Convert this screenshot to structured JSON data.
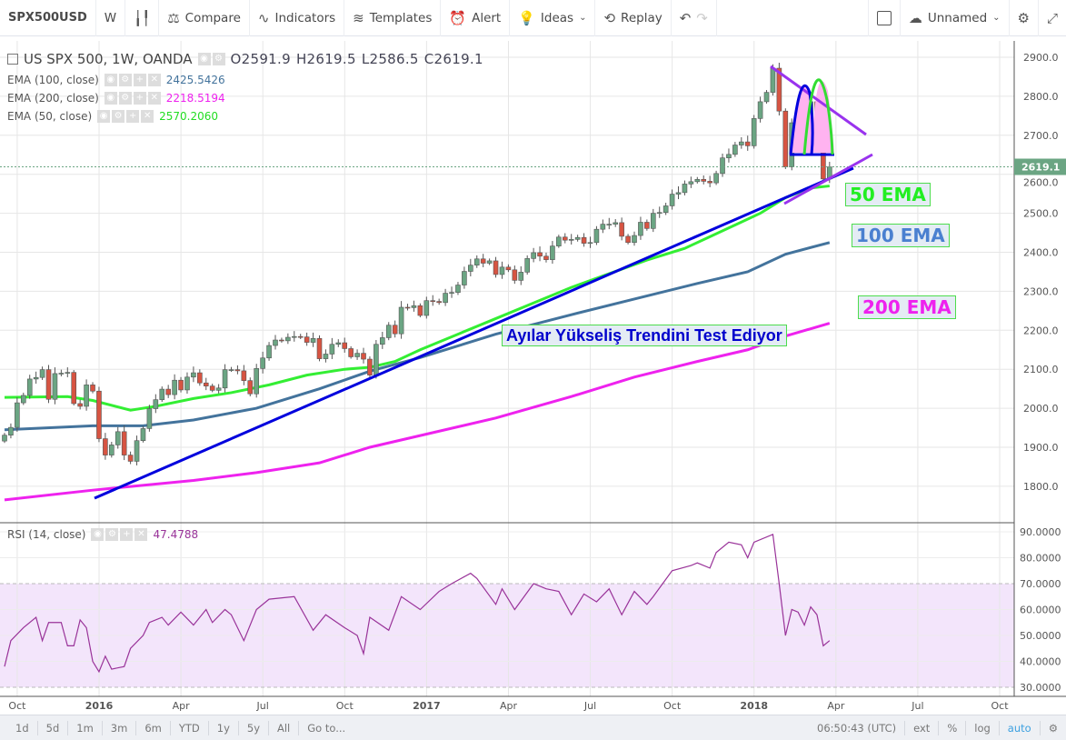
{
  "toolbar": {
    "symbol": "SPX500USD",
    "interval": "W",
    "compare": "Compare",
    "indicators": "Indicators",
    "templates": "Templates",
    "alert": "Alert",
    "ideas": "Ideas",
    "replay": "Replay",
    "layout_name": "Unnamed"
  },
  "legend": {
    "title": "US SPX 500, 1W, OANDA",
    "open": "O2591.9",
    "high": "H2619.5",
    "low": "L2586.5",
    "close": "C2619.1",
    "ema100_label": "EMA (100, close)",
    "ema100_value": "2425.5426",
    "ema200_label": "EMA (200, close)",
    "ema200_value": "2218.5194",
    "ema50_label": "EMA (50, close)",
    "ema50_value": "2570.2060",
    "rsi_label": "RSI (14, close)",
    "rsi_value": "47.4788"
  },
  "annotations": {
    "ema50": "50 EMA",
    "ema100": "100 EMA",
    "ema200": "200 EMA",
    "trend": "Ayılar Yükseliş Trendini Test Ediyor"
  },
  "bottom": {
    "ranges": [
      "1d",
      "5d",
      "1m",
      "3m",
      "6m",
      "YTD",
      "1y",
      "5y",
      "All",
      "Go to..."
    ],
    "time": "06:50:43 (UTC)",
    "ext": "ext",
    "pct": "%",
    "log": "log",
    "auto": "auto"
  },
  "colors": {
    "up": "#6ba583",
    "down": "#d75442",
    "ema50": "#33ee33",
    "ema100": "#43739c",
    "ema200": "#ee22ee",
    "rsi": "#993399",
    "trend": "#0000dd"
  },
  "chart_data": {
    "type": "candlestick",
    "price_axis": {
      "ticks": [
        2900,
        2800,
        2700,
        2600,
        2500,
        2400,
        2300,
        2200,
        2100,
        2000,
        1900,
        1800
      ],
      "labels": [
        "2900.0",
        "2800.0",
        "2700.0",
        "2600.0",
        "2500.0",
        "2400.0",
        "2300.0",
        "2200.0",
        "2100.0",
        "2000.0",
        "1900.0",
        "1800.0"
      ],
      "last": "2619.1"
    },
    "time_axis": {
      "labels": [
        "Oct",
        "2016",
        "Apr",
        "Jul",
        "Oct",
        "2017",
        "Apr",
        "Jul",
        "Oct",
        "2018",
        "Apr",
        "Jul",
        "Oct"
      ],
      "week_index": [
        1,
        14,
        27,
        40,
        53,
        66,
        79,
        92,
        105,
        118,
        131,
        144,
        157
      ]
    },
    "weekly_closes": [
      1931,
      1951,
      2014,
      2033,
      2075,
      2079,
      2099,
      2023,
      2089,
      2090,
      2092,
      2012,
      2005,
      2060,
      2044,
      1922,
      1880,
      1906,
      1940,
      1880,
      1864,
      1917,
      1948,
      1999,
      2022,
      2049,
      2035,
      2072,
      2047,
      2080,
      2091,
      2065,
      2057,
      2046,
      2052,
      2099,
      2099,
      2096,
      2071,
      2037,
      2102,
      2129,
      2161,
      2175,
      2173,
      2182,
      2184,
      2183,
      2169,
      2179,
      2127,
      2139,
      2164,
      2168,
      2153,
      2132,
      2141,
      2126,
      2085,
      2164,
      2181,
      2213,
      2191,
      2259,
      2258,
      2263,
      2238,
      2276,
      2274,
      2271,
      2295,
      2297,
      2316,
      2351,
      2367,
      2383,
      2372,
      2378,
      2343,
      2362,
      2355,
      2328,
      2349,
      2384,
      2399,
      2390,
      2381,
      2416,
      2439,
      2431,
      2433,
      2438,
      2423,
      2425,
      2459,
      2472,
      2472,
      2476,
      2441,
      2425,
      2443,
      2477,
      2461,
      2500,
      2502,
      2519,
      2549,
      2553,
      2575,
      2581,
      2587,
      2582,
      2578,
      2602,
      2642,
      2651,
      2675,
      2683,
      2673,
      2743,
      2786,
      2810,
      2872,
      2762,
      2619,
      2732,
      2747,
      2691,
      2786,
      2752,
      2588,
      2619
    ],
    "ema50": [
      [
        0,
        2028
      ],
      [
        10,
        2030
      ],
      [
        14,
        2020
      ],
      [
        20,
        1995
      ],
      [
        24,
        2005
      ],
      [
        30,
        2025
      ],
      [
        36,
        2040
      ],
      [
        42,
        2060
      ],
      [
        48,
        2085
      ],
      [
        54,
        2100
      ],
      [
        58,
        2105
      ],
      [
        62,
        2120
      ],
      [
        66,
        2150
      ],
      [
        72,
        2190
      ],
      [
        78,
        2230
      ],
      [
        84,
        2270
      ],
      [
        90,
        2310
      ],
      [
        96,
        2345
      ],
      [
        102,
        2380
      ],
      [
        108,
        2410
      ],
      [
        112,
        2440
      ],
      [
        116,
        2470
      ],
      [
        120,
        2500
      ],
      [
        124,
        2540
      ],
      [
        128,
        2565
      ],
      [
        131,
        2570
      ]
    ],
    "ema100": [
      [
        0,
        1945
      ],
      [
        14,
        1955
      ],
      [
        22,
        1955
      ],
      [
        30,
        1970
      ],
      [
        40,
        2000
      ],
      [
        50,
        2050
      ],
      [
        58,
        2095
      ],
      [
        66,
        2130
      ],
      [
        78,
        2190
      ],
      [
        90,
        2240
      ],
      [
        100,
        2280
      ],
      [
        110,
        2320
      ],
      [
        118,
        2350
      ],
      [
        124,
        2395
      ],
      [
        131,
        2425
      ]
    ],
    "ema200": [
      [
        0,
        1765
      ],
      [
        14,
        1790
      ],
      [
        30,
        1815
      ],
      [
        40,
        1835
      ],
      [
        50,
        1860
      ],
      [
        58,
        1900
      ],
      [
        66,
        1930
      ],
      [
        78,
        1975
      ],
      [
        90,
        2030
      ],
      [
        100,
        2080
      ],
      [
        110,
        2120
      ],
      [
        118,
        2150
      ],
      [
        124,
        2185
      ],
      [
        131,
        2218
      ]
    ],
    "rsi_axis": {
      "ticks": [
        90,
        80,
        70,
        60,
        50,
        40,
        30
      ],
      "labels": [
        "90.0000",
        "80.0000",
        "70.0000",
        "60.0000",
        "50.0000",
        "40.0000",
        "30.0000"
      ],
      "band": [
        30,
        70
      ]
    },
    "rsi": [
      [
        0,
        38
      ],
      [
        1,
        48
      ],
      [
        3,
        53
      ],
      [
        5,
        57
      ],
      [
        6,
        48
      ],
      [
        7,
        55
      ],
      [
        9,
        55
      ],
      [
        10,
        46
      ],
      [
        11,
        46
      ],
      [
        12,
        56
      ],
      [
        13,
        53
      ],
      [
        14,
        40
      ],
      [
        15,
        36
      ],
      [
        16,
        42
      ],
      [
        17,
        37
      ],
      [
        19,
        38
      ],
      [
        20,
        45
      ],
      [
        22,
        50
      ],
      [
        23,
        55
      ],
      [
        25,
        57
      ],
      [
        26,
        54
      ],
      [
        28,
        59
      ],
      [
        30,
        54
      ],
      [
        32,
        60
      ],
      [
        33,
        55
      ],
      [
        35,
        60
      ],
      [
        36,
        58
      ],
      [
        38,
        48
      ],
      [
        40,
        60
      ],
      [
        42,
        64
      ],
      [
        46,
        65
      ],
      [
        49,
        52
      ],
      [
        51,
        58
      ],
      [
        54,
        53
      ],
      [
        56,
        50
      ],
      [
        57,
        43
      ],
      [
        58,
        57
      ],
      [
        61,
        52
      ],
      [
        63,
        65
      ],
      [
        66,
        60
      ],
      [
        69,
        67
      ],
      [
        71,
        70
      ],
      [
        74,
        74
      ],
      [
        75,
        72
      ],
      [
        78,
        62
      ],
      [
        79,
        68
      ],
      [
        81,
        60
      ],
      [
        84,
        70
      ],
      [
        86,
        68
      ],
      [
        88,
        67
      ],
      [
        90,
        58
      ],
      [
        92,
        66
      ],
      [
        94,
        63
      ],
      [
        96,
        68
      ],
      [
        98,
        58
      ],
      [
        100,
        67
      ],
      [
        102,
        62
      ],
      [
        103,
        65
      ],
      [
        106,
        75
      ],
      [
        109,
        77
      ],
      [
        110,
        78
      ],
      [
        112,
        76
      ],
      [
        113,
        82
      ],
      [
        115,
        86
      ],
      [
        117,
        85
      ],
      [
        118,
        80
      ],
      [
        119,
        86
      ],
      [
        122,
        89
      ],
      [
        123,
        70
      ],
      [
        124,
        50
      ],
      [
        125,
        60
      ],
      [
        126,
        59
      ],
      [
        127,
        54
      ],
      [
        128,
        61
      ],
      [
        129,
        58
      ],
      [
        130,
        46
      ],
      [
        131,
        48
      ]
    ]
  }
}
